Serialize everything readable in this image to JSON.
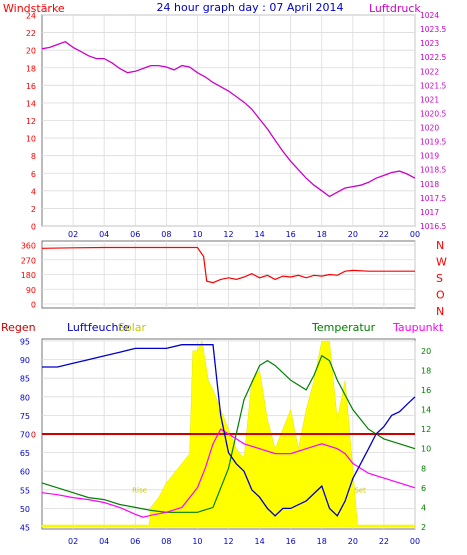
{
  "header": {
    "left_label": "Windstärke",
    "title": "24 hour graph day : 07 April 2014",
    "right_label": "Luftdruck"
  },
  "colors": {
    "wind": "#ff0000",
    "pressure": "#cc00cc",
    "title": "#0000cc",
    "humidity": "#0000cc",
    "solar": "#ffff00",
    "temperature": "#008000",
    "dewpoint": "#ff00ff",
    "rain": "#cc0000",
    "grid": "#dcdcdc"
  },
  "bottom_labels": {
    "rain": "Regen",
    "humidity": "Luftfeuchte",
    "solar": "Solar",
    "temperature": "Temperatur",
    "dewpoint": "Taupunkt",
    "sunrise": "Rise",
    "sunset": "Set"
  },
  "chart_data": [
    {
      "type": "line",
      "x_ticks": [
        "02",
        "04",
        "06",
        "08",
        "10",
        "12",
        "14",
        "16",
        "18",
        "20",
        "22",
        "00"
      ],
      "left_axis": {
        "label": "Windstärke",
        "ylim": [
          0,
          24
        ],
        "ticks": [
          "0",
          "2",
          "4",
          "6",
          "8",
          "10",
          "12",
          "14",
          "16",
          "18",
          "20",
          "22",
          "24"
        ]
      },
      "right_axis": {
        "label": "Luftdruck",
        "ylim": [
          1016.5,
          1024
        ],
        "ticks": [
          "1016.5",
          "1017",
          "1017.5",
          "1018",
          "1018.5",
          "1019",
          "1019.5",
          "1020",
          "1020.5",
          "1021",
          "1021.5",
          "1022",
          "1022.5",
          "1023",
          "1023.5",
          "1024"
        ]
      },
      "series": [
        {
          "name": "Luftdruck",
          "axis": "right",
          "x": [
            0,
            0.5,
            1,
            1.5,
            2,
            2.5,
            3,
            3.5,
            4,
            4.5,
            5,
            5.5,
            6,
            6.5,
            7,
            7.5,
            8,
            8.5,
            9,
            9.5,
            10,
            10.5,
            11,
            11.5,
            12,
            12.5,
            13,
            13.5,
            14,
            14.5,
            15,
            15.5,
            16,
            16.5,
            17,
            17.5,
            18,
            18.5,
            19,
            19.5,
            20,
            20.5,
            21,
            21.5,
            22,
            22.5,
            23,
            23.5,
            24
          ],
          "values": [
            1022.8,
            1022.85,
            1022.95,
            1023.05,
            1022.85,
            1022.7,
            1022.55,
            1022.45,
            1022.45,
            1022.3,
            1022.1,
            1021.95,
            1022.0,
            1022.1,
            1022.2,
            1022.2,
            1022.15,
            1022.05,
            1022.2,
            1022.15,
            1021.95,
            1021.8,
            1021.6,
            1021.45,
            1021.3,
            1021.1,
            1020.9,
            1020.65,
            1020.3,
            1019.95,
            1019.55,
            1019.15,
            1018.8,
            1018.5,
            1018.2,
            1017.95,
            1017.75,
            1017.55,
            1017.7,
            1017.85,
            1017.9,
            1017.95,
            1018.05,
            1018.2,
            1018.3,
            1018.4,
            1018.45,
            1018.35,
            1018.2
          ]
        }
      ]
    },
    {
      "type": "line",
      "x_ticks": [
        "02",
        "04",
        "06",
        "08",
        "10",
        "12",
        "14",
        "16",
        "18",
        "20",
        "22",
        "00"
      ],
      "y_ticks": [
        "0",
        "90",
        "180",
        "270",
        "360"
      ],
      "ylim": [
        0,
        360
      ],
      "direction_labels": [
        "N",
        "W",
        "S",
        "O",
        "N"
      ],
      "series": [
        {
          "name": "Windrichtung",
          "x": [
            0,
            2,
            4,
            6,
            8,
            10,
            10.4,
            10.6,
            11,
            11.5,
            12,
            12.5,
            13,
            13.5,
            14,
            14.5,
            15,
            15.5,
            16,
            16.5,
            17,
            17.5,
            18,
            18.5,
            19,
            19.5,
            20,
            21,
            22,
            23,
            24
          ],
          "values": [
            340,
            343,
            345,
            345,
            345,
            345,
            290,
            140,
            130,
            150,
            160,
            150,
            165,
            185,
            160,
            175,
            150,
            170,
            165,
            175,
            160,
            175,
            170,
            180,
            175,
            200,
            205,
            200,
            200,
            200,
            200
          ]
        }
      ]
    },
    {
      "type": "area",
      "x_ticks": [
        "02",
        "04",
        "06",
        "08",
        "10",
        "12",
        "14",
        "16",
        "18",
        "20",
        "22",
        "00"
      ],
      "left_axis": {
        "ylim": [
          45,
          95
        ],
        "ticks": [
          "45",
          "50",
          "55",
          "60",
          "65",
          "70",
          "75",
          "80",
          "85",
          "90",
          "95"
        ]
      },
      "right_axis": {
        "ylim": [
          2,
          21
        ],
        "ticks": [
          "2",
          "4",
          "6",
          "8",
          "10",
          "12",
          "14",
          "16",
          "18",
          "20"
        ]
      },
      "rain_value": "0",
      "series": [
        {
          "name": "Luftfeuchte",
          "axis": "left",
          "x": [
            0,
            1,
            2,
            3,
            4,
            5,
            6,
            7,
            8,
            9,
            10,
            11,
            11.5,
            12,
            12.5,
            13,
            13.5,
            14,
            14.5,
            15,
            15.5,
            16,
            16.5,
            17,
            17.5,
            18,
            18.5,
            19,
            19.5,
            20,
            20.5,
            21,
            21.5,
            22,
            22.5,
            23,
            23.5,
            24
          ],
          "values": [
            88,
            88,
            89,
            90,
            91,
            92,
            93,
            93,
            93,
            94,
            94,
            94,
            75,
            65,
            62,
            60,
            55,
            53,
            50,
            48,
            50,
            50,
            51,
            52,
            54,
            56,
            50,
            48,
            52,
            58,
            62,
            66,
            70,
            72,
            75,
            76,
            78,
            80
          ]
        },
        {
          "name": "Solar",
          "axis": "right",
          "x": [
            0,
            6.9,
            7,
            7.5,
            8,
            8.5,
            9,
            9.5,
            9.7,
            10,
            10.3,
            10.5,
            10.7,
            11,
            11.5,
            12,
            12.5,
            13,
            13.5,
            14,
            14.5,
            15,
            15.5,
            16,
            16.5,
            17,
            17.5,
            18,
            18.5,
            19,
            19.5,
            20,
            20.3,
            24
          ],
          "values": [
            2.2,
            2.2,
            4,
            5,
            6.5,
            7.5,
            8.5,
            9.5,
            20,
            20,
            21,
            19,
            17,
            16,
            14,
            12,
            10,
            9,
            17,
            18,
            13,
            10,
            12,
            14,
            10,
            14,
            17,
            21,
            21,
            13,
            17,
            8,
            2.2,
            2.2
          ]
        },
        {
          "name": "Temperatur",
          "axis": "right",
          "x": [
            0,
            1,
            2,
            3,
            4,
            5,
            6,
            7,
            8,
            9,
            10,
            11,
            12,
            13,
            14,
            14.5,
            15,
            16,
            17,
            17.5,
            18,
            18.5,
            19,
            20,
            21,
            22,
            23,
            24
          ],
          "values": [
            6.5,
            6,
            5.5,
            5,
            4.8,
            4.3,
            4,
            3.7,
            3.5,
            3.5,
            3.5,
            4,
            8,
            15,
            18.5,
            19,
            18.5,
            17,
            16,
            17.5,
            19.5,
            19,
            17,
            14,
            12,
            11,
            10.5,
            10
          ]
        },
        {
          "name": "Taupunkt",
          "axis": "right",
          "x": [
            0,
            1,
            2,
            3,
            4,
            5,
            6,
            6.5,
            7,
            8,
            9,
            10,
            10.5,
            11,
            11.5,
            12,
            12.5,
            13,
            14,
            15,
            16,
            17,
            18,
            19,
            19.5,
            20,
            21,
            22,
            23,
            24
          ],
          "values": [
            5.5,
            5.3,
            5,
            4.8,
            4.5,
            4,
            3.3,
            3,
            3.2,
            3.5,
            4,
            6,
            8,
            10.5,
            12,
            11.5,
            11,
            10.5,
            10,
            9.5,
            9.5,
            10,
            10.5,
            10,
            9.5,
            8.5,
            7.5,
            7,
            6.5,
            6
          ]
        }
      ]
    }
  ]
}
